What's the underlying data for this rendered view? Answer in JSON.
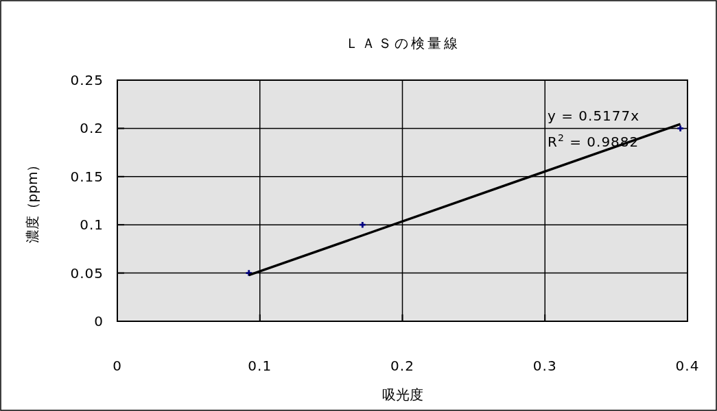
{
  "chart_data": {
    "type": "scatter",
    "title": "ＬＡＳの検量線",
    "xlabel": "吸光度",
    "ylabel": "濃度（ppm）",
    "xlim": [
      0,
      0.4
    ],
    "xticks": [
      0,
      0.1,
      0.2,
      0.3,
      0.4
    ],
    "ylim": [
      0,
      0.25
    ],
    "yticks": [
      0,
      0.05,
      0.1,
      0.15,
      0.2,
      0.25
    ],
    "grid": true,
    "series": [
      {
        "color": "#000080",
        "marker": "cross",
        "x": [
          0.0923,
          0.172,
          0.395
        ],
        "values": [
          0.05,
          0.1,
          0.2
        ]
      },
      {
        "type": "line",
        "color": "#000000",
        "x": [
          0.0923,
          0.395
        ],
        "values": [
          0.0478,
          0.2045
        ]
      }
    ],
    "annotations": [
      "y = 0.5177x",
      "R$^{2}$ = 0.9882"
    ]
  }
}
